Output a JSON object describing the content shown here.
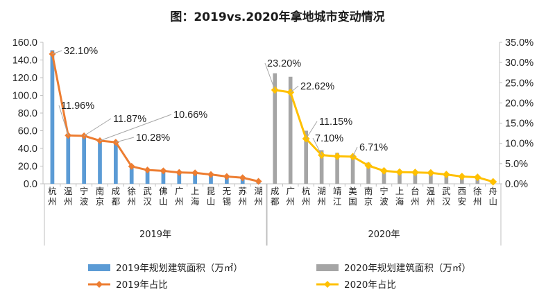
{
  "chart_data": {
    "type": "bar+line",
    "title": "图：2019vs.2020年拿地城市变动情况",
    "groups": [
      {
        "name": "2019年",
        "categories": [
          "杭州",
          "温州",
          "宁波",
          "南京",
          "成都",
          "徐州",
          "武汉",
          "佛山",
          "广州",
          "上海",
          "昆山",
          "无锡",
          "苏州",
          "湖州"
        ],
        "bars": [
          151,
          55,
          53,
          47,
          46,
          19,
          16,
          15,
          13,
          13,
          11,
          9,
          7,
          3
        ],
        "share": [
          32.1,
          11.96,
          11.87,
          10.66,
          10.28,
          4.3,
          3.4,
          3.2,
          2.8,
          2.7,
          2.3,
          1.8,
          1.5,
          0.6
        ],
        "share_labels": [
          "32.10%",
          "11.96%",
          "11.87%",
          "10.66%",
          "10.28%",
          "",
          "",
          "",
          "",
          "",
          "",
          "",
          "",
          ""
        ]
      },
      {
        "name": "2020年",
        "categories": [
          "成都",
          "广州",
          "杭州",
          "湖州",
          "靖江",
          "美国",
          "南京",
          "宁波",
          "上海",
          "台州",
          "温州",
          "武汉",
          "西安",
          "徐州",
          "舟山"
        ],
        "bars": [
          125,
          121,
          60,
          38,
          35,
          33,
          24,
          15,
          13,
          13,
          12,
          11,
          9,
          8,
          3
        ],
        "share": [
          23.2,
          22.62,
          11.15,
          7.1,
          6.8,
          6.71,
          4.5,
          3.2,
          2.9,
          2.8,
          2.7,
          2.3,
          1.8,
          1.6,
          0.5
        ],
        "share_labels": [
          "23.20%",
          "22.62%",
          "11.15%",
          "7.10%",
          "",
          "6.71%",
          "",
          "",
          "",
          "",
          "",
          "",
          "",
          "",
          ""
        ]
      }
    ],
    "y_left": {
      "min": 0,
      "max": 160,
      "step": 20,
      "tick_labels": [
        "0.0",
        "20.0",
        "40.0",
        "60.0",
        "80.0",
        "100.0",
        "120.0",
        "140.0",
        "160.0"
      ]
    },
    "y_right": {
      "min": 0,
      "max": 35,
      "step": 5,
      "tick_labels": [
        "0.0%",
        "5.0%",
        "10.0%",
        "15.0%",
        "20.0%",
        "25.0%",
        "30.0%",
        "35.0%"
      ]
    },
    "colors": {
      "bar_2019": "#5b9bd5",
      "bar_2020": "#a5a5a5",
      "line_2019": "#ed7d31",
      "line_2020": "#ffc000",
      "axis": "#bfbfbf",
      "leader": "#a6a6a6"
    },
    "legend": [
      {
        "label": "2019年规划建筑面积（万㎡）",
        "kind": "bar",
        "color": "#5b9bd5"
      },
      {
        "label": "2020年规划建筑面积（万㎡）",
        "kind": "bar",
        "color": "#a5a5a5"
      },
      {
        "label": "2019年占比",
        "kind": "line",
        "color": "#ed7d31"
      },
      {
        "label": "2020年占比",
        "kind": "line",
        "color": "#ffc000"
      }
    ],
    "legend_position": "bottom",
    "grid": false
  }
}
